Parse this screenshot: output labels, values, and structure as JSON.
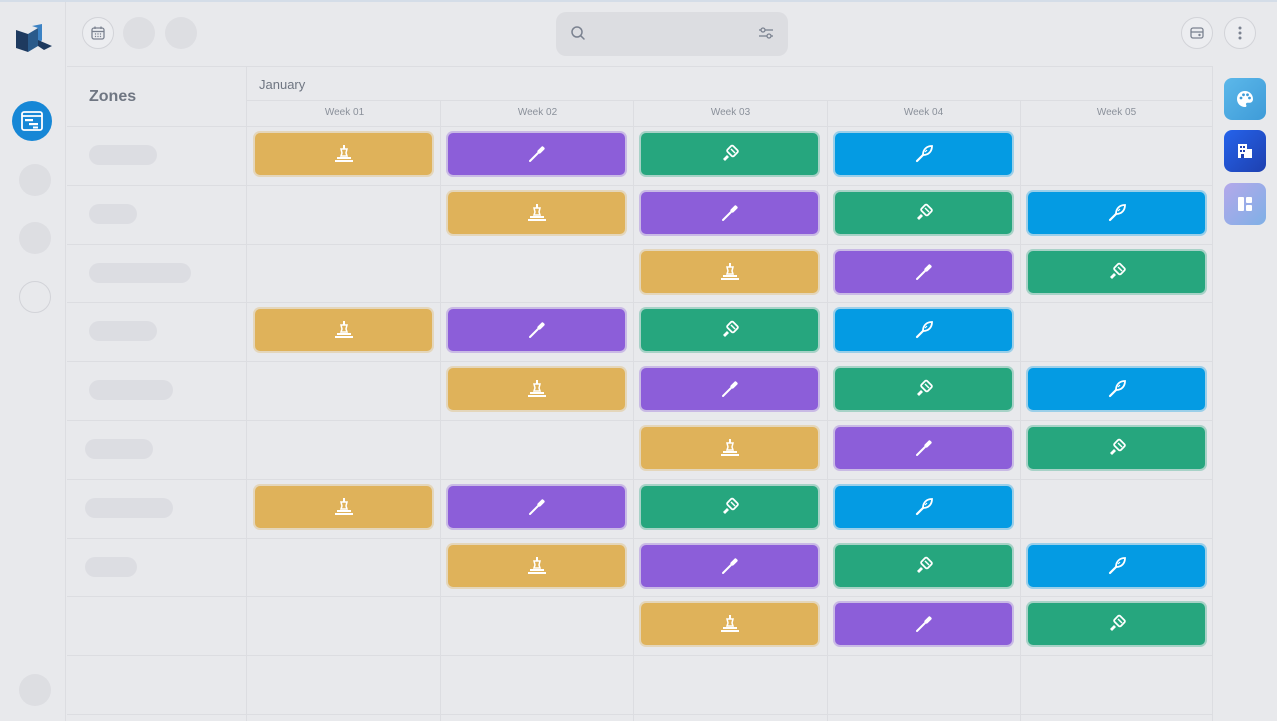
{
  "header": {
    "search": {
      "placeholder": ""
    }
  },
  "sidebar": {
    "items": [
      {
        "icon": "timeline-icon",
        "active": true
      },
      {
        "icon": "placeholder-circle"
      },
      {
        "icon": "placeholder-circle"
      },
      {
        "icon": "placeholder-circle"
      },
      {
        "icon": "avatar"
      }
    ]
  },
  "right_panel": {
    "buttons": [
      {
        "icon": "palette-icon",
        "color": "#4aa8e0"
      },
      {
        "icon": "building-icon",
        "color": "#1d4ed8"
      },
      {
        "icon": "layout-icon",
        "color": "#8fa8e8"
      }
    ]
  },
  "timeline": {
    "zones_title": "Zones",
    "month": "January",
    "weeks": [
      "Week 01",
      "Week 02",
      "Week 03",
      "Week 04",
      "Week 05"
    ]
  },
  "colors": {
    "yellow": "#dfb25a",
    "purple": "#8c5ed9",
    "green": "#26a67e",
    "blue": "#049be3",
    "accent": "#1687d6"
  },
  "task_types": {
    "yellow": "drill-icon",
    "purple": "screwdriver-icon",
    "green": "paint-brush-icon",
    "blue": "trowel-icon"
  },
  "rows": [
    [
      "yellow",
      "purple",
      "green",
      "blue",
      null
    ],
    [
      null,
      "yellow",
      "purple",
      "green",
      "blue"
    ],
    [
      null,
      null,
      "yellow",
      "purple",
      "green"
    ],
    [
      "yellow",
      "purple",
      "green",
      "blue",
      null
    ],
    [
      null,
      "yellow",
      "purple",
      "green",
      "blue"
    ],
    [
      null,
      null,
      "yellow",
      "purple",
      "green"
    ],
    [
      "yellow",
      "purple",
      "green",
      "blue",
      null
    ],
    [
      null,
      "yellow",
      "purple",
      "green",
      "blue"
    ],
    [
      null,
      null,
      "yellow",
      "purple",
      "green"
    ],
    [
      null,
      null,
      null,
      null,
      null
    ]
  ]
}
